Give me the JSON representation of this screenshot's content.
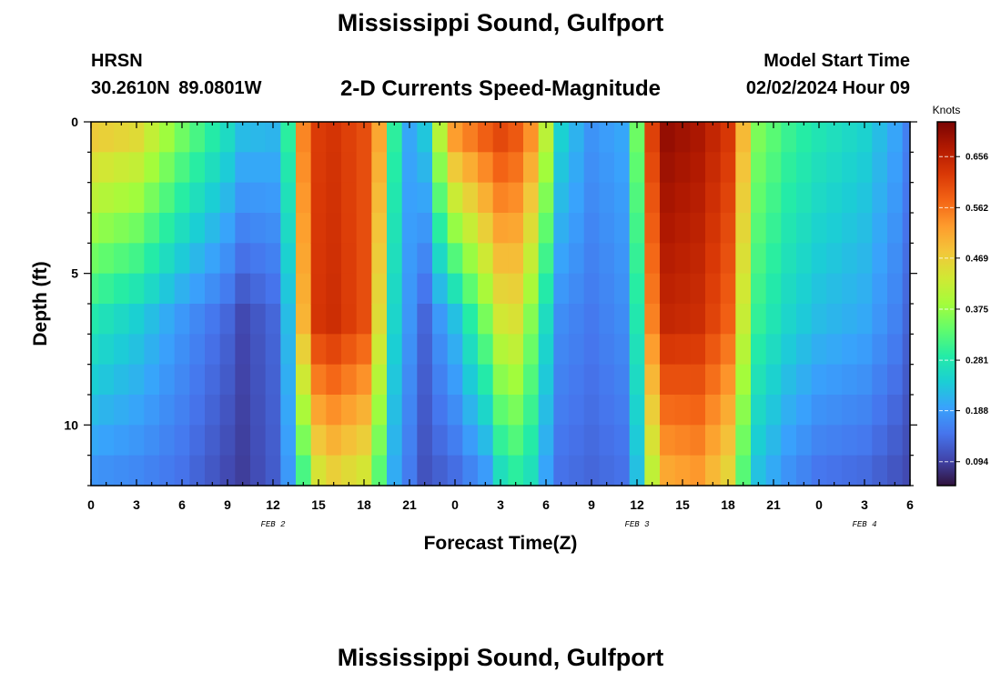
{
  "header": {
    "title": "Mississippi Sound, Gulfport",
    "station": "HRSN",
    "coords": "30.2610N  89.0801W",
    "subtitle": "2-D Currents Speed-Magnitude",
    "model_label": "Model Start Time",
    "model_time": "02/02/2024 Hour 09"
  },
  "footer": {
    "title": "Mississippi Sound, Gulfport"
  },
  "chart_data": {
    "type": "heatmap",
    "xlabel": "Forecast Time(Z)",
    "ylabel": "Depth (ft)",
    "x_tick_labels": [
      "0",
      "3",
      "6",
      "9",
      "12",
      "15",
      "18",
      "21",
      "0",
      "3",
      "6",
      "9",
      "12",
      "15",
      "18",
      "21",
      "0",
      "3",
      "6"
    ],
    "date_labels": [
      {
        "text": "FEB 2",
        "hour": 12
      },
      {
        "text": "FEB 3",
        "hour": 36
      },
      {
        "text": "FEB 4",
        "hour": 51
      }
    ],
    "x_hours": [
      0,
      1,
      2,
      3,
      4,
      5,
      6,
      7,
      8,
      9,
      10,
      11,
      12,
      13,
      14,
      15,
      16,
      17,
      18,
      19,
      20,
      21,
      22,
      23,
      24,
      25,
      26,
      27,
      28,
      29,
      30,
      31,
      32,
      33,
      34,
      35,
      36,
      37,
      38,
      39,
      40,
      41,
      42,
      43,
      44,
      45,
      46,
      47,
      48,
      49,
      50,
      51,
      52,
      53,
      54
    ],
    "xlim": [
      0,
      54
    ],
    "depths": [
      0.5,
      1.5,
      2.5,
      3.5,
      4.5,
      5.5,
      6.5,
      7.5,
      8.5,
      9.5,
      10.5,
      11.5
    ],
    "y_ticks": [
      0,
      5,
      10
    ],
    "ylim": [
      0,
      12
    ],
    "colorbar": {
      "title": "Knots",
      "ticks": [
        0.094,
        0.188,
        0.281,
        0.375,
        0.469,
        0.562,
        0.656
      ],
      "range": [
        0.05,
        0.72
      ]
    },
    "color_scale": [
      "#30123b",
      "#4145ab",
      "#4675ed",
      "#39a2fc",
      "#1bcfd4",
      "#24eca6",
      "#61fc6c",
      "#a4fc3b",
      "#d1e834",
      "#f3c63a",
      "#fe9b2d",
      "#f36315",
      "#d93806",
      "#b11901",
      "#7a0403"
    ],
    "profile_keypoints": [
      {
        "h": 0,
        "top": 0.49,
        "mid": 0.28,
        "bot": 0.17
      },
      {
        "h": 3,
        "top": 0.47,
        "mid": 0.24,
        "bot": 0.16
      },
      {
        "h": 6,
        "top": 0.36,
        "mid": 0.18,
        "bot": 0.14
      },
      {
        "h": 9,
        "top": 0.27,
        "mid": 0.13,
        "bot": 0.1
      },
      {
        "h": 10,
        "top": 0.23,
        "mid": 0.1,
        "bot": 0.09
      },
      {
        "h": 12,
        "top": 0.22,
        "mid": 0.13,
        "bot": 0.12
      },
      {
        "h": 13,
        "top": 0.3,
        "mid": 0.22,
        "bot": 0.18
      },
      {
        "h": 14,
        "top": 0.55,
        "mid": 0.5,
        "bot": 0.3
      },
      {
        "h": 15,
        "top": 0.62,
        "mid": 0.63,
        "bot": 0.42
      },
      {
        "h": 16,
        "top": 0.63,
        "mid": 0.64,
        "bot": 0.45
      },
      {
        "h": 18,
        "top": 0.6,
        "mid": 0.6,
        "bot": 0.42
      },
      {
        "h": 19,
        "top": 0.52,
        "mid": 0.45,
        "bot": 0.32
      },
      {
        "h": 20,
        "top": 0.3,
        "mid": 0.25,
        "bot": 0.2
      },
      {
        "h": 21,
        "top": 0.2,
        "mid": 0.18,
        "bot": 0.15
      },
      {
        "h": 22,
        "top": 0.24,
        "mid": 0.13,
        "bot": 0.11
      },
      {
        "h": 23,
        "top": 0.42,
        "mid": 0.18,
        "bot": 0.12
      },
      {
        "h": 24,
        "top": 0.55,
        "mid": 0.22,
        "bot": 0.13
      },
      {
        "h": 26,
        "top": 0.6,
        "mid": 0.35,
        "bot": 0.17
      },
      {
        "h": 27,
        "top": 0.62,
        "mid": 0.43,
        "bot": 0.25
      },
      {
        "h": 28,
        "top": 0.6,
        "mid": 0.44,
        "bot": 0.28
      },
      {
        "h": 29,
        "top": 0.55,
        "mid": 0.36,
        "bot": 0.26
      },
      {
        "h": 30,
        "top": 0.42,
        "mid": 0.26,
        "bot": 0.19
      },
      {
        "h": 31,
        "top": 0.25,
        "mid": 0.17,
        "bot": 0.14
      },
      {
        "h": 33,
        "top": 0.18,
        "mid": 0.15,
        "bot": 0.13
      },
      {
        "h": 35,
        "top": 0.2,
        "mid": 0.17,
        "bot": 0.14
      },
      {
        "h": 36,
        "top": 0.35,
        "mid": 0.28,
        "bot": 0.22
      },
      {
        "h": 37,
        "top": 0.62,
        "mid": 0.55,
        "bot": 0.4
      },
      {
        "h": 38,
        "top": 0.7,
        "mid": 0.65,
        "bot": 0.5
      },
      {
        "h": 40,
        "top": 0.68,
        "mid": 0.64,
        "bot": 0.52
      },
      {
        "h": 42,
        "top": 0.63,
        "mid": 0.58,
        "bot": 0.45
      },
      {
        "h": 43,
        "top": 0.5,
        "mid": 0.42,
        "bot": 0.32
      },
      {
        "h": 44,
        "top": 0.36,
        "mid": 0.3,
        "bot": 0.22
      },
      {
        "h": 46,
        "top": 0.31,
        "mid": 0.25,
        "bot": 0.17
      },
      {
        "h": 48,
        "top": 0.28,
        "mid": 0.22,
        "bot": 0.14
      },
      {
        "h": 51,
        "top": 0.25,
        "mid": 0.2,
        "bot": 0.13
      },
      {
        "h": 53,
        "top": 0.2,
        "mid": 0.16,
        "bot": 0.11
      },
      {
        "h": 54,
        "top": 0.16,
        "mid": 0.13,
        "bot": 0.1
      }
    ]
  }
}
